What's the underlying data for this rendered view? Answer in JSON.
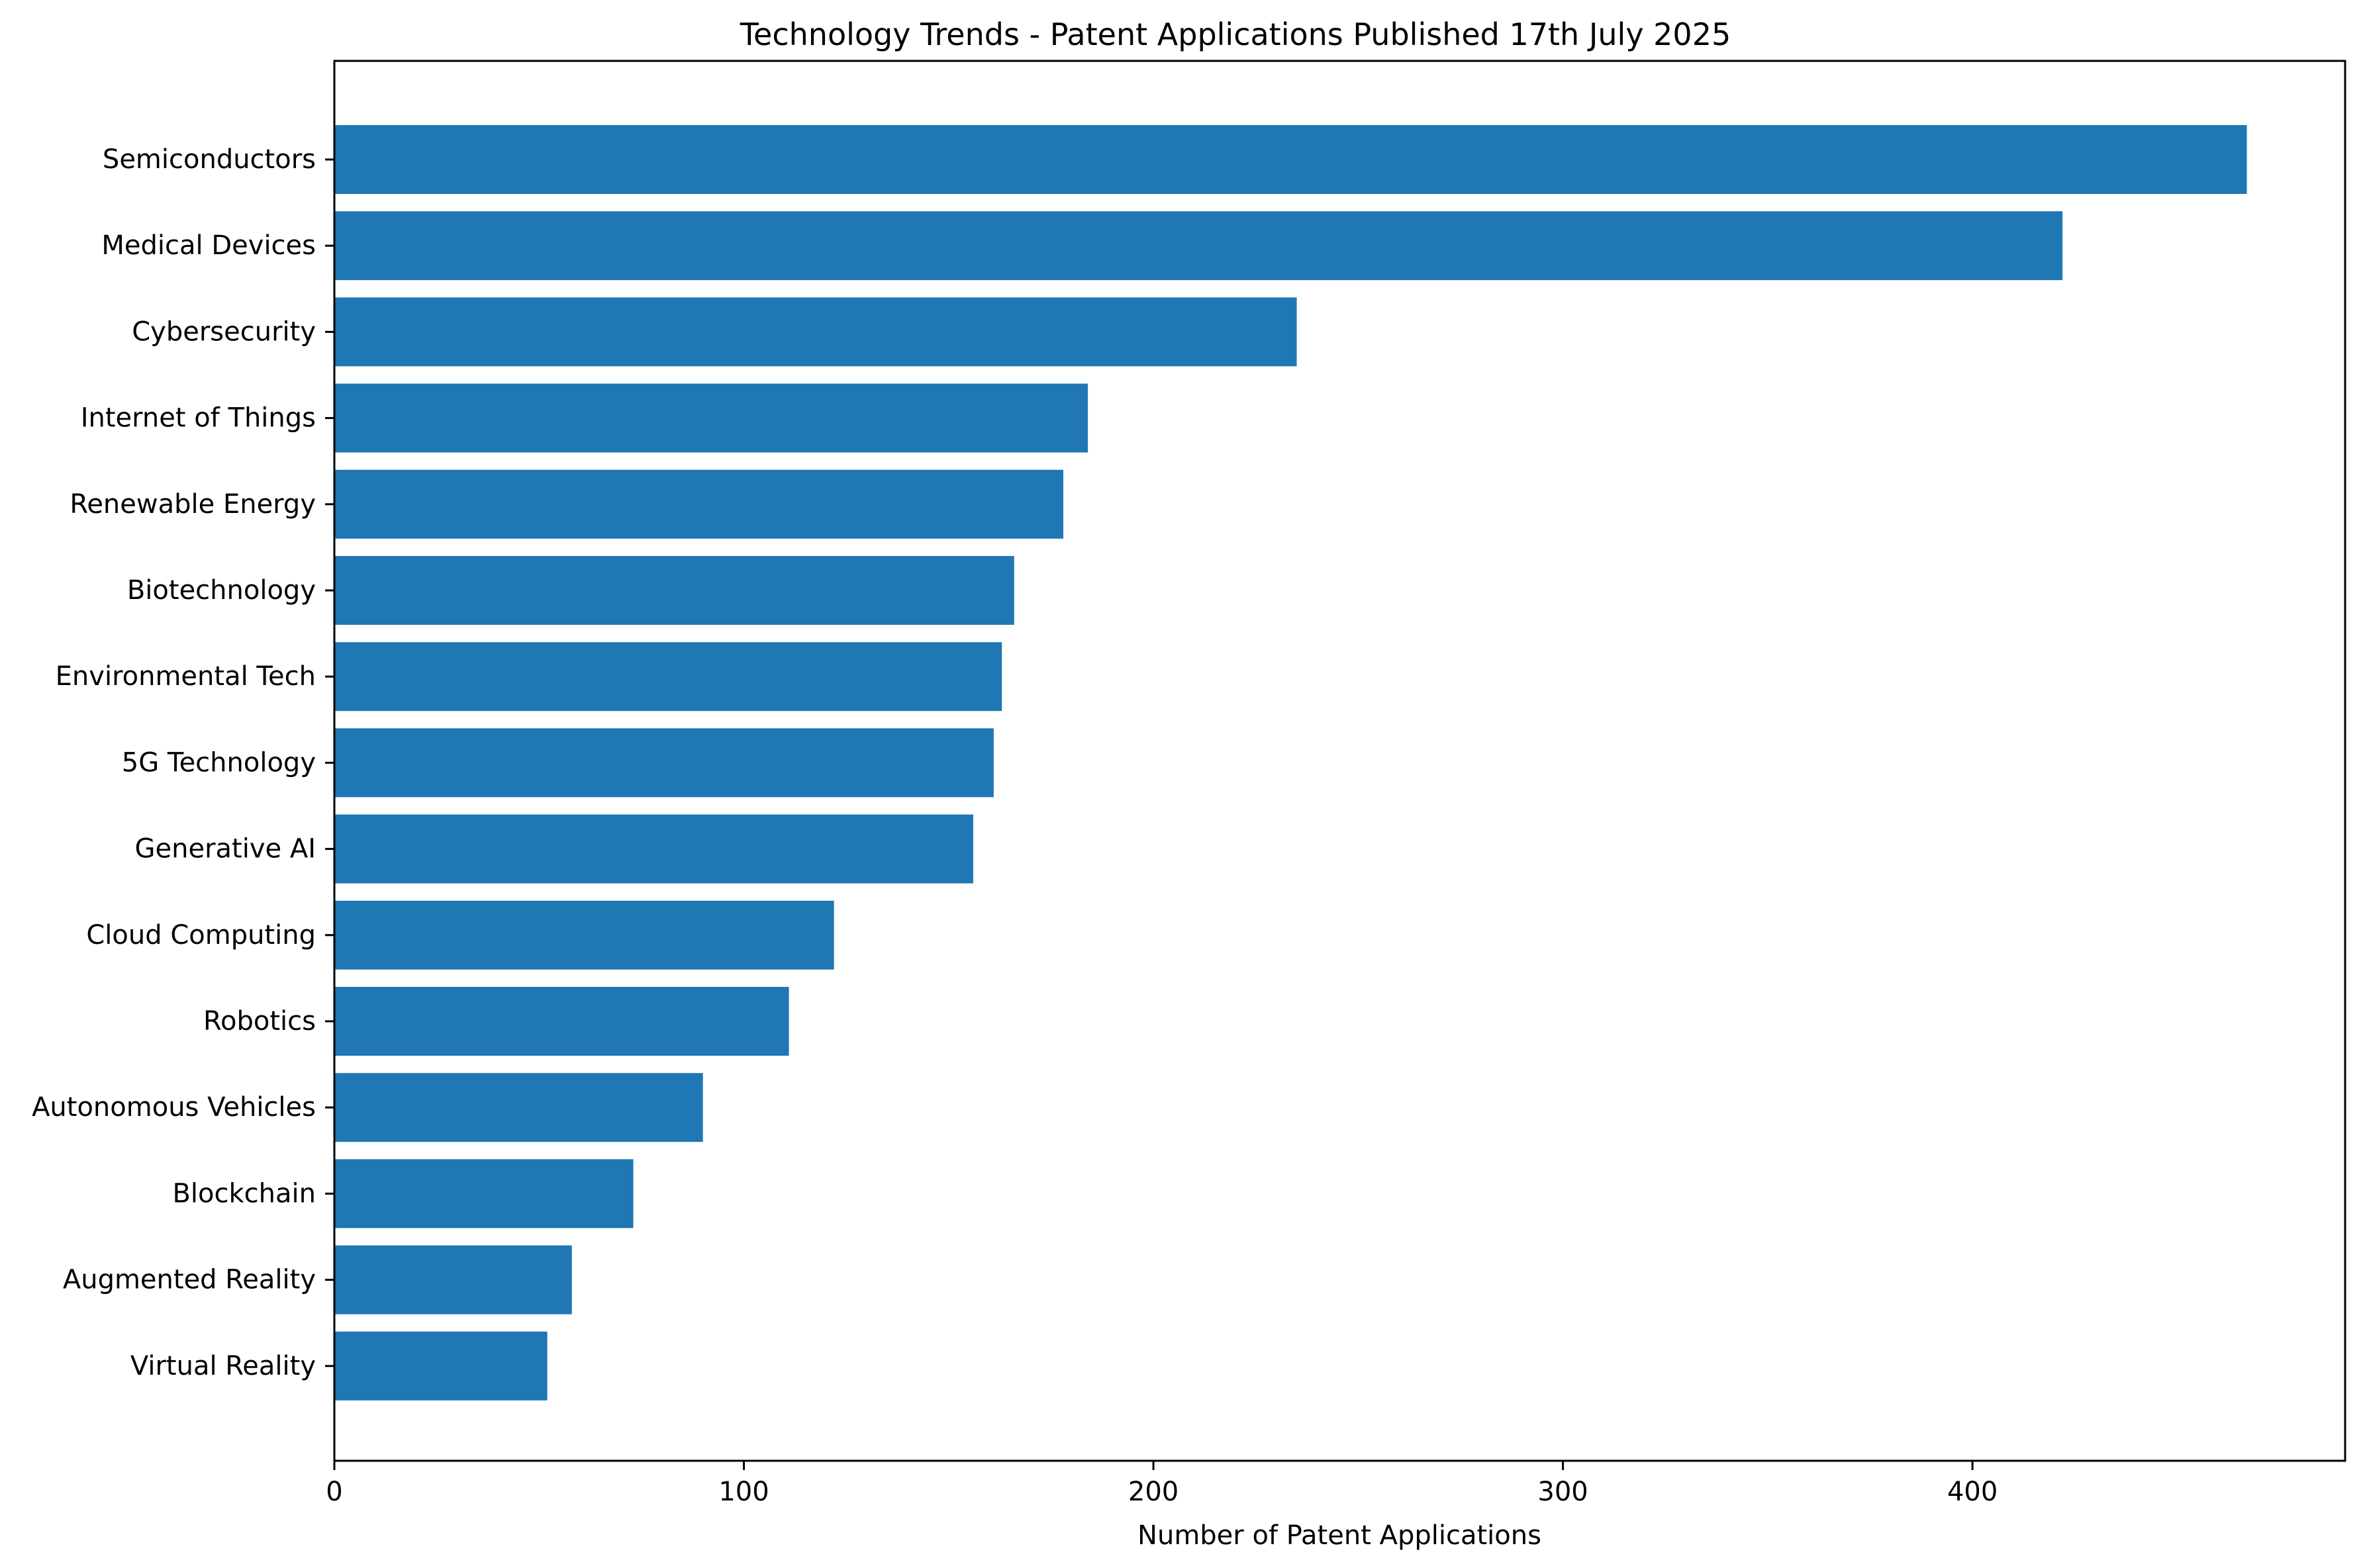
{
  "chart_data": {
    "type": "bar",
    "orientation": "horizontal",
    "title": "Technology Trends - Patent Applications Published 17th July 2025",
    "xlabel": "Number of Patent Applications",
    "ylabel": "",
    "categories": [
      "Semiconductors",
      "Medical Devices",
      "Cybersecurity",
      "Internet of Things",
      "Renewable Energy",
      "Biotechnology",
      "Environmental Tech",
      "5G Technology",
      "Generative AI",
      "Cloud Computing",
      "Robotics",
      "Autonomous Vehicles",
      "Blockchain",
      "Augmented Reality",
      "Virtual Reality"
    ],
    "values": [
      467,
      422,
      235,
      184,
      178,
      166,
      163,
      161,
      156,
      122,
      111,
      90,
      73,
      58,
      52
    ],
    "xlim": [
      0,
      491
    ],
    "xticks": [
      0,
      100,
      200,
      300,
      400
    ],
    "grid": false,
    "legend": "none",
    "bar_color": "#1f77b4"
  }
}
